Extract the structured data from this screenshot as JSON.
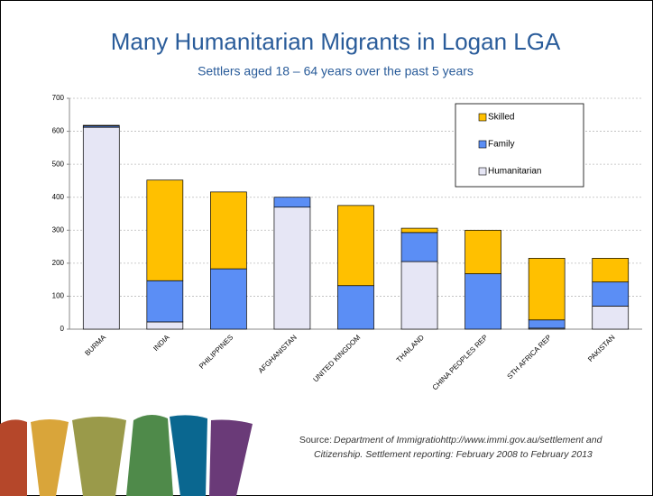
{
  "chart_data": {
    "type": "stacked-bar",
    "title": "Many Humanitarian Migrants in Logan LGA",
    "subtitle": "Settlers aged 18 – 64 years over the past 5 years",
    "categories": [
      "BURMA",
      "INDIA",
      "PHILIPPINES",
      "AFGHANISTAN",
      "UNITED KINGDOM",
      "THAILAND",
      "CHINA PEOPLES REP",
      "STH AFRICA REP",
      "PAKISTAN"
    ],
    "series": [
      {
        "name": "Humanitarian",
        "color": "#e6e6f5",
        "values": [
          612,
          22,
          0,
          370,
          0,
          205,
          0,
          3,
          70
        ]
      },
      {
        "name": "Family",
        "color": "#5b8ef5",
        "values": [
          4,
          125,
          183,
          30,
          132,
          88,
          168,
          25,
          73
        ]
      },
      {
        "name": "Skilled",
        "color": "#ffc000",
        "values": [
          2,
          305,
          233,
          0,
          243,
          13,
          132,
          187,
          72
        ]
      }
    ],
    "ylim": [
      0,
      700
    ],
    "yticks": [
      0,
      100,
      200,
      300,
      400,
      500,
      600,
      700
    ],
    "grid": true,
    "legend": "top-right",
    "source_label": "Source:",
    "source_lines": [
      "Department of Immigratiohttp://www.immi.gov.au/settlement and",
      "Citizenship. Settlement reporting: February 2008 to February 2013"
    ]
  }
}
